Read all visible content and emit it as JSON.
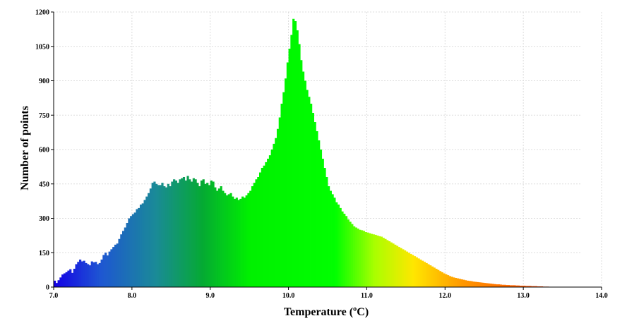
{
  "chart_data": {
    "type": "bar",
    "subtype": "histogram",
    "title": "",
    "xlabel": "Temperature (ºC)",
    "ylabel": "Number of points",
    "xlim": [
      7.0,
      14.0
    ],
    "ylim": [
      0,
      1200
    ],
    "x_ticks": [
      "7.0",
      "8.0",
      "9.0",
      "10.0",
      "11.0",
      "12.0",
      "13.0",
      "14.0"
    ],
    "y_ticks": [
      "0",
      "150",
      "300",
      "450",
      "600",
      "750",
      "900",
      "1050",
      "1200"
    ],
    "grid": true,
    "bin_start": 7.0,
    "bin_width": 0.025,
    "values": [
      28,
      18,
      30,
      42,
      55,
      60,
      65,
      72,
      78,
      62,
      80,
      100,
      110,
      120,
      112,
      115,
      105,
      100,
      95,
      112,
      108,
      110,
      100,
      105,
      120,
      140,
      150,
      138,
      155,
      165,
      175,
      185,
      190,
      210,
      230,
      245,
      260,
      280,
      300,
      310,
      318,
      325,
      340,
      345,
      360,
      365,
      380,
      395,
      410,
      430,
      455,
      460,
      450,
      445,
      445,
      455,
      440,
      435,
      450,
      440,
      460,
      470,
      465,
      455,
      470,
      475,
      480,
      465,
      485,
      470,
      460,
      475,
      470,
      455,
      440,
      465,
      470,
      450,
      455,
      445,
      465,
      460,
      435,
      420,
      430,
      440,
      420,
      410,
      400,
      405,
      410,
      395,
      385,
      390,
      380,
      385,
      395,
      390,
      400,
      410,
      420,
      440,
      455,
      470,
      480,
      500,
      520,
      530,
      545,
      560,
      575,
      600,
      625,
      650,
      690,
      740,
      800,
      850,
      910,
      980,
      1040,
      1100,
      1170,
      1160,
      1120,
      1060,
      990,
      940,
      900,
      860,
      830,
      800,
      760,
      720,
      680,
      640,
      600,
      560,
      520,
      480,
      440,
      420,
      405,
      390,
      370,
      360,
      345,
      330,
      320,
      310,
      295,
      285,
      275,
      265,
      260,
      255,
      250,
      248,
      245,
      240,
      238,
      235,
      232,
      230,
      228,
      225,
      222,
      220,
      215,
      210,
      205,
      200,
      195,
      190,
      185,
      180,
      175,
      170,
      165,
      160,
      155,
      150,
      145,
      140,
      135,
      130,
      125,
      120,
      115,
      110,
      105,
      100,
      95,
      90,
      85,
      80,
      75,
      70,
      65,
      60,
      56,
      52,
      48,
      45,
      42,
      40,
      38,
      36,
      34,
      32,
      30,
      28,
      27,
      26,
      24,
      23,
      22,
      21,
      20,
      19,
      18,
      17,
      16,
      15,
      14,
      13,
      12,
      12,
      11,
      10,
      10,
      9,
      9,
      8,
      8,
      8,
      7,
      7,
      6,
      6,
      6,
      5,
      5,
      5,
      4,
      4,
      4,
      3,
      3,
      3,
      2,
      2,
      2
    ],
    "color_gradient": [
      {
        "t": 7.0,
        "color": "#1400e6"
      },
      {
        "t": 7.6,
        "color": "#1e56d2"
      },
      {
        "t": 8.3,
        "color": "#1a8a98"
      },
      {
        "t": 8.9,
        "color": "#05aa33"
      },
      {
        "t": 9.5,
        "color": "#00f000"
      },
      {
        "t": 10.6,
        "color": "#00ff00"
      },
      {
        "t": 11.1,
        "color": "#aaff00"
      },
      {
        "t": 11.6,
        "color": "#ffe600"
      },
      {
        "t": 12.2,
        "color": "#ff9a00"
      },
      {
        "t": 13.0,
        "color": "#ff5a00"
      },
      {
        "t": 14.0,
        "color": "#e60000"
      }
    ]
  }
}
